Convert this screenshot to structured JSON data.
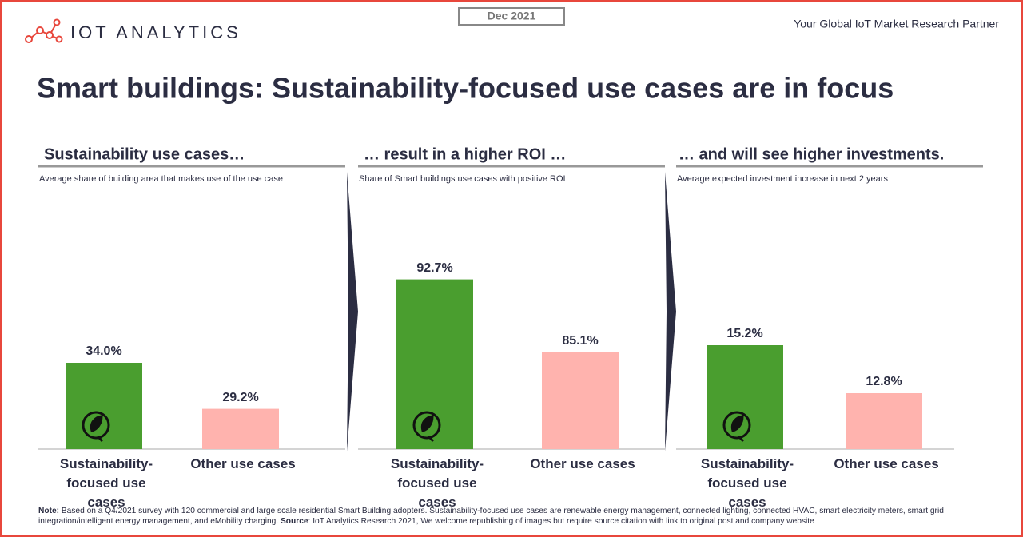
{
  "header": {
    "brand": "IOT ANALYTICS",
    "date": "Dec 2021",
    "tagline": "Your Global IoT Market Research Partner"
  },
  "title": "Smart buildings: Sustainability-focused use cases are in focus",
  "chart_data": [
    {
      "type": "bar",
      "title": "Sustainability use cases…",
      "subtitle": "Average share of building area that makes use of the use case",
      "categories": [
        "Sustainability-focused use cases",
        "Other use cases"
      ],
      "values": [
        34.0,
        29.2
      ],
      "value_labels": [
        "34.0%",
        "29.2%"
      ],
      "colors": [
        "#4a9e2f",
        "#ffb3ae"
      ],
      "ylim": [
        25,
        50
      ]
    },
    {
      "type": "bar",
      "title": "… result in a higher ROI …",
      "subtitle": "Share of Smart buildings use cases with positive ROI",
      "categories": [
        "Sustainability-focused use cases",
        "Other use cases"
      ],
      "values": [
        92.7,
        85.1
      ],
      "value_labels": [
        "92.7%",
        "85.1%"
      ],
      "colors": [
        "#4a9e2f",
        "#ffb3ae"
      ],
      "ylim": [
        75,
        100
      ]
    },
    {
      "type": "bar",
      "title": "… and will see higher investments.",
      "subtitle": "Average expected investment increase in next 2 years",
      "categories": [
        "Sustainability-focused use cases",
        "Other use cases"
      ],
      "values": [
        15.2,
        12.8
      ],
      "value_labels": [
        "15.2%",
        "12.8%"
      ],
      "colors": [
        "#4a9e2f",
        "#ffb3ae"
      ],
      "ylim": [
        10,
        22
      ]
    }
  ],
  "note": {
    "label": "Note:",
    "text": " Based on a Q4/2021 survey with 120 commercial and large scale residential Smart Building adopters. Sustainability-focused use cases are renewable energy management, connected lighting, connected HVAC, smart electricity meters, smart grid integration/intelligent energy management, and eMobility charging. ",
    "source_label": "Source",
    "source_text": ": IoT Analytics Research 2021, We welcome republishing of images but require source citation with link to original post and company website"
  }
}
